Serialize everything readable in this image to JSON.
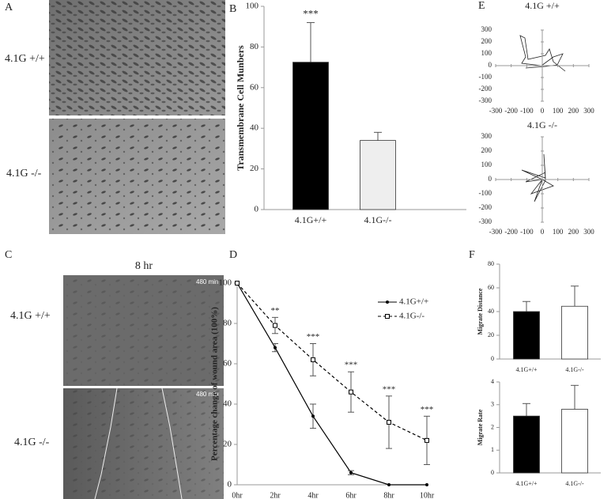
{
  "images": [
    {
      "label": "A",
      "rows": [
        "4.1G +/+",
        "4.1G -/-"
      ]
    },
    {
      "label": "C",
      "title": "8 hr",
      "rows": [
        "4.1G +/+",
        "4.1G -/-"
      ],
      "stamps": [
        "480 min",
        "480 min"
      ]
    }
  ],
  "chart_data": [
    {
      "type": "bar",
      "label": "B",
      "ylabel": "Transmembrane Cell Munbers",
      "categories": [
        "4.1G+/+",
        "4.1G-/-"
      ],
      "values": [
        72.5,
        34
      ],
      "errors": [
        19.5,
        4
      ],
      "colors": [
        "#000000",
        "#eeeeee"
      ],
      "annotations": [
        "***",
        null
      ],
      "ylim": [
        0,
        100
      ],
      "yticks": [
        0,
        20,
        40,
        60,
        80,
        100
      ]
    },
    {
      "type": "line",
      "label": "D",
      "ylabel": "Percentage change of wound area (100%)",
      "categories": [
        "0hr",
        "2hr",
        "4hr",
        "6hr",
        "8hr",
        "10hr"
      ],
      "series": [
        {
          "name": "4.1G+/+",
          "color": "#000000",
          "dash": false,
          "values": [
            100,
            68,
            34,
            6,
            0,
            0
          ],
          "errors": [
            0,
            2,
            6,
            1,
            0,
            0
          ]
        },
        {
          "name": "4.1G-/-",
          "color": "#000000",
          "dash": true,
          "values": [
            100,
            79,
            62,
            46,
            31,
            22
          ],
          "errors": [
            0,
            4,
            8,
            10,
            13,
            12
          ],
          "annotations": [
            null,
            "**",
            "***",
            "***",
            "***",
            "***"
          ]
        }
      ],
      "ylim": [
        0,
        100
      ],
      "yticks": [
        0,
        20,
        40,
        60,
        80,
        100
      ]
    },
    {
      "type": "track",
      "label": "E",
      "title": "4.1G +/+",
      "xlim": [
        -300,
        300
      ],
      "xticks": [
        -300,
        -200,
        -100,
        0,
        100,
        200,
        300
      ],
      "ylim": [
        -300,
        300
      ],
      "yticks": [
        -300,
        -200,
        -100,
        0,
        100,
        200,
        300
      ]
    },
    {
      "type": "track",
      "title": "4.1G -/-",
      "xlim": [
        -300,
        300
      ],
      "xticks": [
        -300,
        -200,
        -100,
        0,
        100,
        200,
        300
      ],
      "ylim": [
        -300,
        300
      ],
      "yticks": [
        -300,
        -200,
        -100,
        0,
        100,
        200,
        300
      ]
    },
    {
      "type": "bar",
      "label": "F",
      "ylabel": "Migrate Distance",
      "categories": [
        "4.1G+/+",
        "4.1G-/-"
      ],
      "values": [
        40,
        44.5
      ],
      "errors": [
        8.5,
        17
      ],
      "colors": [
        "#000000",
        "#ffffff"
      ],
      "ylim": [
        0,
        80
      ],
      "yticks": [
        0,
        20,
        40,
        60,
        80
      ]
    },
    {
      "type": "bar",
      "ylabel": "Migrate Rate",
      "categories": [
        "4.1G+/+",
        "4.1G-/-"
      ],
      "values": [
        2.5,
        2.8
      ],
      "errors": [
        0.55,
        1.05
      ],
      "colors": [
        "#000000",
        "#ffffff"
      ],
      "ylim": [
        0,
        4
      ],
      "yticks": [
        0,
        1,
        2,
        3,
        4
      ]
    }
  ]
}
